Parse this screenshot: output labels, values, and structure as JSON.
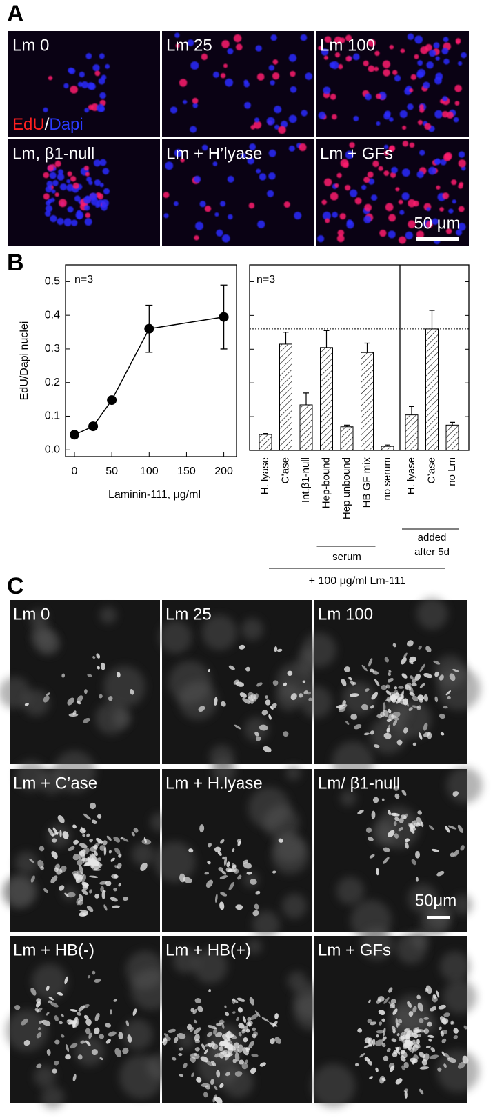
{
  "panel_a": {
    "label": "A",
    "tiles": [
      "Lm 0",
      "Lm 25",
      "Lm 100",
      "Lm, β1-null",
      "Lm + H’lyase",
      "Lm + GFs"
    ],
    "stain": [
      "EdU",
      "/",
      "Dapi"
    ],
    "scale_bar": "50 μm"
  },
  "panel_b": {
    "label": "B"
  },
  "chart_data": [
    {
      "type": "line",
      "ylabel": "EdU/Dapi nuclei",
      "xlabel": "Laminin-111, μg/ml",
      "annotation": "n=3",
      "x": [
        0,
        25,
        50,
        100,
        200
      ],
      "values": [
        0.045,
        0.07,
        0.148,
        0.36,
        0.395
      ],
      "errors": [
        0.004,
        0.005,
        0.005,
        0.07,
        0.095
      ],
      "color": "#000000",
      "xlim": [
        -12,
        217
      ],
      "ylim": [
        -0.02,
        0.55
      ],
      "xticks": [
        0,
        50,
        100,
        150,
        200
      ],
      "yticks": [
        {
          "value": 0,
          "label": "0.0"
        },
        0.1,
        0.2,
        0.3,
        0.4,
        0.5
      ]
    },
    {
      "type": "bar",
      "annotation": "n=3",
      "categories": [
        "H. lyase",
        "C’ase",
        "Int.β1-null",
        "Hep-bound",
        "Hep unbound",
        "HB GF mix",
        "no serum",
        "H. lyase",
        "C’ase",
        "no Lm"
      ],
      "values": [
        0.047,
        0.315,
        0.135,
        0.305,
        0.07,
        0.29,
        0.012,
        0.105,
        0.36,
        0.075
      ],
      "errors": [
        0.003,
        0.035,
        0.035,
        0.05,
        0.005,
        0.028,
        0.004,
        0.025,
        0.055,
        0.008
      ],
      "reference_line": 0.36,
      "ylim": [
        0,
        0.55
      ],
      "yticks": [
        0,
        0.1,
        0.2,
        0.3,
        0.4,
        0.5
      ],
      "bracket_serum": "serum",
      "bracket_added": [
        "added",
        "after 5d"
      ],
      "bracket_all": "+ 100 μg/ml Lm-111"
    }
  ],
  "panel_c": {
    "label": "C",
    "tiles": [
      "Lm 0",
      "Lm 25",
      "Lm 100",
      "Lm + C’ase",
      "Lm + H.lyase",
      "Lm/ β1-null",
      "Lm + HB(-)",
      "Lm + HB(+)",
      "Lm + GFs"
    ],
    "scale_bar": "50μm"
  }
}
